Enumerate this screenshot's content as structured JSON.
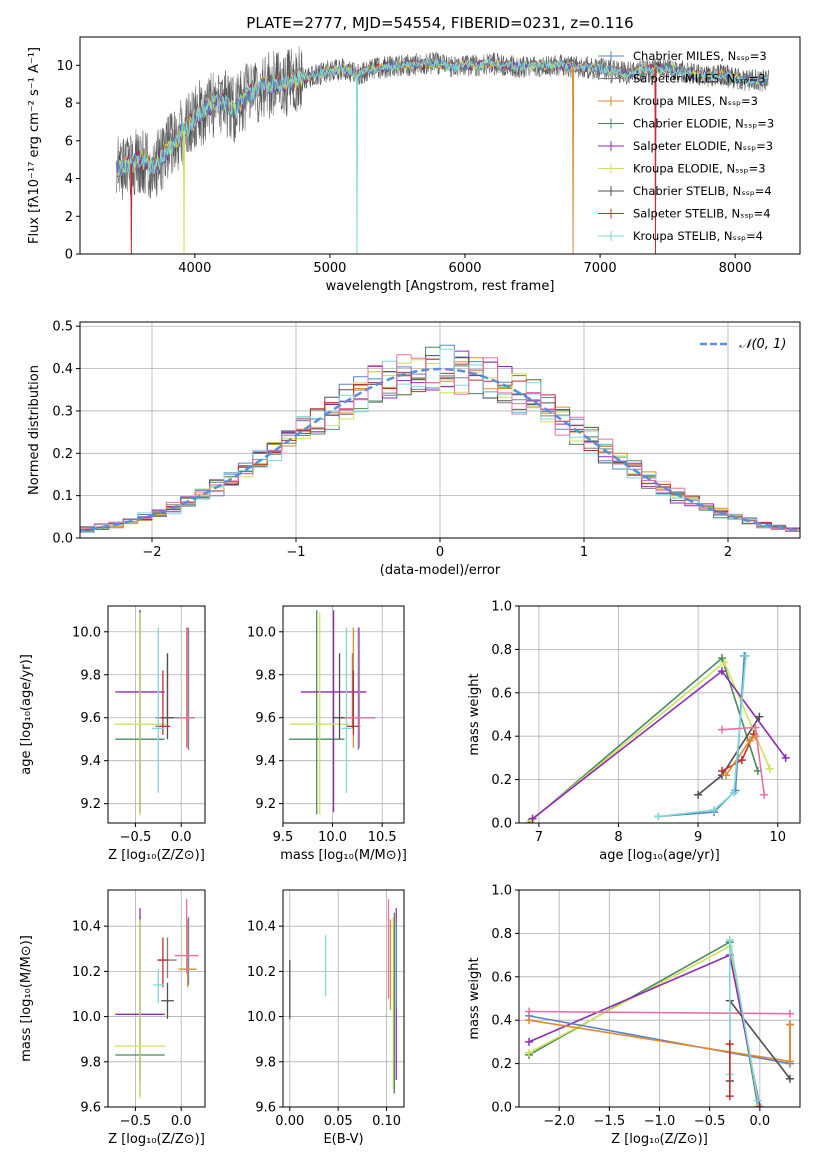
{
  "figure": {
    "title": "PLATE=2777, MJD=54554, FIBERID=0231, z=0.116"
  },
  "colors": {
    "Chabrier MILES": "#5b84c4",
    "Salpeter MILES": "#7f7f7f",
    "Kroupa MILES": "#e08a2e",
    "Chabrier ELODIE": "#4a8b5c",
    "Salpeter ELODIE": "#8e2bb5",
    "Kroupa ELODIE": "#cfe25a",
    "Chabrier STELIB": "#505050",
    "Salpeter STELIB": "#c03030",
    "Kroupa STELIB": "#80d8d8",
    "extra_pink": "#e870a8",
    "gaussian": "#5b8fd8",
    "grid": "#b0b0b0"
  },
  "chart_data": [
    {
      "id": "spectrum",
      "type": "line",
      "xlabel": "wavelength [Angstrom, rest frame]",
      "ylabel": "Flux [fλ10⁻¹⁷ erg cm⁻² s⁻¹ A⁻¹]",
      "xlim": [
        3150,
        8480
      ],
      "ylim": [
        0,
        11.5
      ],
      "xticks": [
        4000,
        5000,
        6000,
        7000,
        8000
      ],
      "yticks": [
        0,
        2,
        4,
        6,
        8,
        10
      ],
      "legend": [
        "Chabrier MILES, Nₛₛₚ=3",
        "Salpeter MILES, Nₛₛₚ=3",
        "Kroupa MILES, Nₛₛₚ=3",
        "Chabrier ELODIE, Nₛₛₚ=3",
        "Salpeter ELODIE, Nₛₛₚ=3",
        "Kroupa ELODIE, Nₛₛₚ=3",
        "Chabrier STELIB, Nₛₛₚ=4",
        "Salpeter STELIB, Nₛₛₚ=4",
        "Kroupa STELIB, Nₛₛₚ=4"
      ],
      "legend_placement": "lower right",
      "continuum": [
        [
          3420,
          4.4
        ],
        [
          3500,
          4.7
        ],
        [
          3600,
          5.0
        ],
        [
          3700,
          4.6
        ],
        [
          3800,
          5.5
        ],
        [
          3900,
          6.4
        ],
        [
          3950,
          6.7
        ],
        [
          4000,
          7.2
        ],
        [
          4100,
          7.8
        ],
        [
          4200,
          8.1
        ],
        [
          4300,
          7.6
        ],
        [
          4400,
          8.5
        ],
        [
          4500,
          8.9
        ],
        [
          4600,
          9.0
        ],
        [
          4700,
          9.1
        ],
        [
          4800,
          9.3
        ],
        [
          4900,
          9.5
        ],
        [
          5000,
          9.7
        ],
        [
          5100,
          9.8
        ],
        [
          5200,
          9.5
        ],
        [
          5300,
          9.8
        ],
        [
          5400,
          9.9
        ],
        [
          5500,
          10.0
        ],
        [
          5600,
          10.0
        ],
        [
          5700,
          10.1
        ],
        [
          5800,
          10.1
        ],
        [
          5900,
          9.9
        ],
        [
          6000,
          10.0
        ],
        [
          6100,
          10.0
        ],
        [
          6200,
          10.1
        ],
        [
          6300,
          10.0
        ],
        [
          6400,
          9.9
        ],
        [
          6500,
          10.0
        ],
        [
          6600,
          10.0
        ],
        [
          6700,
          10.0
        ],
        [
          6800,
          9.9
        ],
        [
          6900,
          9.9
        ],
        [
          7000,
          9.8
        ],
        [
          7100,
          9.7
        ],
        [
          7200,
          9.6
        ],
        [
          7300,
          9.7
        ],
        [
          7400,
          9.8
        ],
        [
          7500,
          9.8
        ],
        [
          7600,
          9.7
        ],
        [
          7700,
          9.5
        ],
        [
          7800,
          9.4
        ],
        [
          7900,
          9.5
        ],
        [
          8000,
          9.3
        ],
        [
          8100,
          9.2
        ],
        [
          8200,
          9.2
        ]
      ],
      "dips": [
        [
          3530,
          "Salpeter STELIB"
        ],
        [
          3920,
          "Kroupa ELODIE"
        ],
        [
          5200,
          "Kroupa STELIB"
        ],
        [
          6800,
          "Kroupa MILES"
        ],
        [
          7410,
          "Salpeter STELIB"
        ]
      ]
    },
    {
      "id": "residuals",
      "type": "histogram",
      "xlabel": "(data-model)/error",
      "ylabel": "Normed distribution",
      "xlim": [
        -2.5,
        2.5
      ],
      "ylim": [
        0,
        0.51
      ],
      "xticks": [
        -2,
        -1,
        0,
        1,
        2
      ],
      "yticks": [
        0.0,
        0.1,
        0.2,
        0.3,
        0.4,
        0.5
      ],
      "legend": [
        "𝒩(0, 1)"
      ],
      "legend_placement": "upper right",
      "bin_width": 0.1
    },
    {
      "id": "age_vs_Z",
      "type": "errorbar",
      "xlabel": "Z [log₁₀(Z/Z⊙)]",
      "ylabel": "age  [log₁₀(age/yr)]",
      "xlim": [
        -0.8,
        0.26
      ],
      "ylim": [
        9.11,
        10.12
      ],
      "xticks": [
        -0.5,
        0.0
      ],
      "yticks": [
        9.2,
        9.4,
        9.6,
        9.8,
        10.0
      ],
      "points": [
        {
          "c": "Chabrier MILES",
          "x": 0.08,
          "y": 9.6,
          "xerr": [
            0.07,
            0.07
          ],
          "yerr": [
            0.15,
            0.42
          ]
        },
        {
          "c": "Salpeter MILES",
          "x": -0.15,
          "y": 9.6,
          "xerr": [
            0.13,
            0.13
          ],
          "yerr": [
            0.05,
            0.3
          ]
        },
        {
          "c": "Kroupa MILES",
          "x": 0.07,
          "y": 9.6,
          "xerr": [
            0.07,
            0.07
          ],
          "yerr": [
            0.14,
            0.42
          ]
        },
        {
          "c": "Chabrier ELODIE",
          "x": -0.45,
          "y": 9.5,
          "xerr": [
            0.27,
            0.27
          ],
          "yerr": [
            0.35,
            0.6
          ]
        },
        {
          "c": "Salpeter ELODIE",
          "x": -0.45,
          "y": 9.72,
          "xerr": [
            0.27,
            0.27
          ],
          "yerr": [
            0.56,
            0.38
          ]
        },
        {
          "c": "Kroupa ELODIE",
          "x": -0.45,
          "y": 9.57,
          "xerr": [
            0.28,
            0.28
          ],
          "yerr": [
            0.42,
            0.52
          ]
        },
        {
          "c": "Chabrier STELIB",
          "x": -0.15,
          "y": 9.6,
          "xerr": [
            0.07,
            0.07
          ],
          "yerr": [
            0.1,
            0.3
          ]
        },
        {
          "c": "Salpeter STELIB",
          "x": -0.2,
          "y": 9.56,
          "xerr": [
            0.08,
            0.08
          ],
          "yerr": [
            0.04,
            0.26
          ]
        },
        {
          "c": "Kroupa STELIB",
          "x": -0.25,
          "y": 9.55,
          "xerr": [
            0.07,
            0.07
          ],
          "yerr": [
            0.3,
            0.47
          ]
        },
        {
          "c": "extra_pink",
          "x": 0.06,
          "y": 9.6,
          "xerr": [
            0.08,
            0.08
          ],
          "yerr": [
            0.14,
            0.42
          ]
        }
      ]
    },
    {
      "id": "age_vs_mass",
      "type": "errorbar",
      "xlabel": "mass [log₁₀(M/M⊙)]",
      "ylabel": "",
      "xlim": [
        9.5,
        10.72
      ],
      "ylim": [
        9.11,
        10.12
      ],
      "xticks": [
        9.5,
        10.0,
        10.5
      ],
      "yticks": [
        9.2,
        9.4,
        9.6,
        9.8,
        10.0
      ],
      "points": [
        {
          "c": "Chabrier MILES",
          "x": 10.26,
          "y": 9.6,
          "xerr": [
            0.17,
            0.17
          ],
          "yerr": [
            0.15,
            0.42
          ]
        },
        {
          "c": "Salpeter MILES",
          "x": 10.2,
          "y": 9.6,
          "xerr": [
            0.12,
            0.12
          ],
          "yerr": [
            0.05,
            0.3
          ]
        },
        {
          "c": "Kroupa MILES",
          "x": 10.21,
          "y": 9.6,
          "xerr": [
            0.14,
            0.14
          ],
          "yerr": [
            0.14,
            0.42
          ]
        },
        {
          "c": "Chabrier ELODIE",
          "x": 9.84,
          "y": 9.5,
          "xerr": [
            0.28,
            0.28
          ],
          "yerr": [
            0.35,
            0.6
          ]
        },
        {
          "c": "Salpeter ELODIE",
          "x": 10.01,
          "y": 9.72,
          "xerr": [
            0.33,
            0.33
          ],
          "yerr": [
            0.56,
            0.38
          ]
        },
        {
          "c": "Kroupa ELODIE",
          "x": 9.87,
          "y": 9.57,
          "xerr": [
            0.3,
            0.3
          ],
          "yerr": [
            0.42,
            0.52
          ]
        },
        {
          "c": "Chabrier STELIB",
          "x": 10.07,
          "y": 9.6,
          "xerr": [
            0.07,
            0.07
          ],
          "yerr": [
            0.1,
            0.3
          ]
        },
        {
          "c": "Salpeter STELIB",
          "x": 10.21,
          "y": 9.56,
          "xerr": [
            0.07,
            0.07
          ],
          "yerr": [
            0.04,
            0.26
          ]
        },
        {
          "c": "Kroupa STELIB",
          "x": 10.14,
          "y": 9.55,
          "xerr": [
            0.05,
            0.05
          ],
          "yerr": [
            0.3,
            0.47
          ]
        },
        {
          "c": "extra_pink",
          "x": 10.27,
          "y": 9.6,
          "xerr": [
            0.15,
            0.15
          ],
          "yerr": [
            0.14,
            0.42
          ]
        }
      ]
    },
    {
      "id": "weight_vs_age",
      "type": "line",
      "xlabel": "age  [log₁₀(age/yr)]",
      "ylabel": "mass weight",
      "xlim": [
        6.75,
        10.28
      ],
      "ylim": [
        0.0,
        1.0
      ],
      "xticks": [
        7,
        8,
        9,
        10
      ],
      "yticks": [
        0.0,
        0.2,
        0.4,
        0.6,
        0.8,
        1.0
      ],
      "series": [
        {
          "c": "Chabrier ELODIE",
          "x": [
            6.87,
            9.3,
            9.75
          ],
          "y": [
            0.0,
            0.76,
            0.24
          ]
        },
        {
          "c": "Kroupa ELODIE",
          "x": [
            6.9,
            9.33,
            9.9
          ],
          "y": [
            0.01,
            0.74,
            0.25
          ]
        },
        {
          "c": "Salpeter ELODIE",
          "x": [
            6.92,
            9.3,
            10.1
          ],
          "y": [
            0.02,
            0.7,
            0.3
          ]
        },
        {
          "c": "Chabrier STELIB",
          "x": [
            9.0,
            9.3,
            9.77
          ],
          "y": [
            0.13,
            0.22,
            0.49
          ]
        },
        {
          "c": "Salpeter STELIB",
          "x": [
            9.3,
            9.55,
            9.7
          ],
          "y": [
            0.24,
            0.29,
            0.41
          ]
        },
        {
          "c": "Kroupa MILES",
          "x": [
            9.35,
            9.65,
            9.72
          ],
          "y": [
            0.22,
            0.38,
            0.4
          ]
        },
        {
          "c": "Chabrier MILES",
          "x": [
            8.5,
            9.2,
            9.47,
            9.58
          ],
          "y": [
            0.03,
            0.05,
            0.15,
            0.77
          ]
        },
        {
          "c": "Kroupa STELIB",
          "x": [
            8.5,
            9.2,
            9.45,
            9.6
          ],
          "y": [
            0.03,
            0.06,
            0.14,
            0.77
          ]
        },
        {
          "c": "extra_pink",
          "x": [
            9.3,
            9.72,
            9.83
          ],
          "y": [
            0.43,
            0.44,
            0.13
          ]
        }
      ]
    },
    {
      "id": "mass_vs_Z",
      "type": "errorbar",
      "xlabel": "Z [log₁₀(Z/Z⊙)]",
      "ylabel": "mass [log₁₀(M/M⊙)]",
      "xlim": [
        -0.8,
        0.26
      ],
      "ylim": [
        9.6,
        10.56
      ],
      "xticks": [
        -0.5,
        0.0
      ],
      "yticks": [
        9.6,
        9.8,
        10.0,
        10.2,
        10.4
      ],
      "points": [
        {
          "c": "Chabrier MILES",
          "x": 0.08,
          "y": 10.21,
          "xerr": [
            0.07,
            0.07
          ],
          "yerr": [
            0.07,
            0.23
          ]
        },
        {
          "c": "Salpeter MILES",
          "x": -0.15,
          "y": 10.25,
          "xerr": [
            0.1,
            0.1
          ],
          "yerr": [
            0.08,
            0.1
          ]
        },
        {
          "c": "Kroupa MILES",
          "x": 0.07,
          "y": 10.21,
          "xerr": [
            0.1,
            0.1
          ],
          "yerr": [
            0.08,
            0.22
          ]
        },
        {
          "c": "Chabrier ELODIE",
          "x": -0.45,
          "y": 9.83,
          "xerr": [
            0.27,
            0.27
          ],
          "yerr": [
            0.18,
            0.61
          ]
        },
        {
          "c": "Salpeter ELODIE",
          "x": -0.45,
          "y": 10.01,
          "xerr": [
            0.27,
            0.27
          ],
          "yerr": [
            0.3,
            0.47
          ]
        },
        {
          "c": "Kroupa ELODIE",
          "x": -0.45,
          "y": 9.87,
          "xerr": [
            0.28,
            0.28
          ],
          "yerr": [
            0.23,
            0.56
          ]
        },
        {
          "c": "Chabrier STELIB",
          "x": -0.15,
          "y": 10.07,
          "xerr": [
            0.07,
            0.07
          ],
          "yerr": [
            0.08,
            0.08
          ]
        },
        {
          "c": "Salpeter STELIB",
          "x": -0.2,
          "y": 10.25,
          "xerr": [
            0.06,
            0.06
          ],
          "yerr": [
            0.12,
            0.1
          ]
        },
        {
          "c": "Kroupa STELIB",
          "x": -0.25,
          "y": 10.14,
          "xerr": [
            0.06,
            0.06
          ],
          "yerr": [
            0.08,
            0.07
          ]
        },
        {
          "c": "extra_pink",
          "x": 0.06,
          "y": 10.27,
          "xerr": [
            0.13,
            0.13
          ],
          "yerr": [
            0.08,
            0.25
          ]
        }
      ]
    },
    {
      "id": "mass_vs_ebv",
      "type": "errorbar",
      "xlabel": "E(B-V)",
      "ylabel": "",
      "xlim": [
        -0.007,
        0.118
      ],
      "ylim": [
        9.6,
        10.56
      ],
      "xticks": [
        0.0,
        0.05,
        0.1
      ],
      "yticks": [
        9.6,
        9.8,
        10.0,
        10.2,
        10.4
      ],
      "points": [
        {
          "c": "Chabrier STELIB",
          "x": 0.0,
          "y": 10.12,
          "yerr": [
            0.13,
            0.13
          ]
        },
        {
          "c": "Kroupa STELIB",
          "x": 0.037,
          "y": 10.22,
          "yerr": [
            0.13,
            0.14
          ]
        },
        {
          "c": "extra_pink",
          "x": 0.102,
          "y": 10.3,
          "yerr": [
            0.22,
            0.22
          ]
        },
        {
          "c": "Kroupa MILES",
          "x": 0.104,
          "y": 10.23,
          "yerr": [
            0.2,
            0.2
          ]
        },
        {
          "c": "Kroupa ELODIE",
          "x": 0.107,
          "y": 10.06,
          "yerr": [
            0.38,
            0.38
          ]
        },
        {
          "c": "Chabrier ELODIE",
          "x": 0.108,
          "y": 10.06,
          "yerr": [
            0.4,
            0.4
          ]
        },
        {
          "c": "Salpeter ELODIE",
          "x": 0.11,
          "y": 10.1,
          "yerr": [
            0.38,
            0.38
          ]
        },
        {
          "c": "Chabrier MILES",
          "x": 0.11,
          "y": 10.22,
          "yerr": [
            0.18,
            0.2
          ]
        }
      ]
    },
    {
      "id": "weight_vs_Z",
      "type": "line",
      "xlabel": "Z [log₁₀(Z/Z⊙)]",
      "ylabel": "mass weight",
      "xlim": [
        -2.4,
        0.4
      ],
      "ylim": [
        0.0,
        1.0
      ],
      "xticks": [
        -2.0,
        -1.5,
        -1.0,
        -0.5,
        0.0
      ],
      "yticks": [
        0.0,
        0.2,
        0.4,
        0.6,
        0.8,
        1.0
      ],
      "series": [
        {
          "c": "Chabrier ELODIE",
          "x": [
            -2.3,
            -0.3,
            -0.02
          ],
          "y": [
            0.24,
            0.76,
            0.0
          ]
        },
        {
          "c": "Kroupa ELODIE",
          "x": [
            -2.3,
            -0.3,
            -0.01
          ],
          "y": [
            0.25,
            0.74,
            0.01
          ]
        },
        {
          "c": "Salpeter ELODIE",
          "x": [
            -2.3,
            -0.3,
            0.0
          ],
          "y": [
            0.3,
            0.7,
            0.0
          ]
        },
        {
          "c": "Chabrier MILES",
          "x": [
            -2.3,
            0.3,
            0.3
          ],
          "y": [
            0.42,
            0.2,
            0.38
          ]
        },
        {
          "c": "Kroupa MILES",
          "x": [
            -2.3,
            0.3,
            0.3
          ],
          "y": [
            0.4,
            0.21,
            0.38
          ]
        },
        {
          "c": "extra_pink",
          "x": [
            -2.3,
            0.3
          ],
          "y": [
            0.44,
            0.43
          ]
        },
        {
          "c": "Chabrier STELIB",
          "x": [
            -0.3,
            -0.3,
            0.3
          ],
          "y": [
            0.12,
            0.49,
            0.13
          ]
        },
        {
          "c": "Kroupa STELIB",
          "x": [
            -0.3,
            -0.3,
            -0.02
          ],
          "y": [
            0.15,
            0.77,
            0.03
          ]
        },
        {
          "c": "Salpeter STELIB",
          "x": [
            -0.3,
            -0.3
          ],
          "y": [
            0.05,
            0.29
          ]
        }
      ]
    }
  ]
}
